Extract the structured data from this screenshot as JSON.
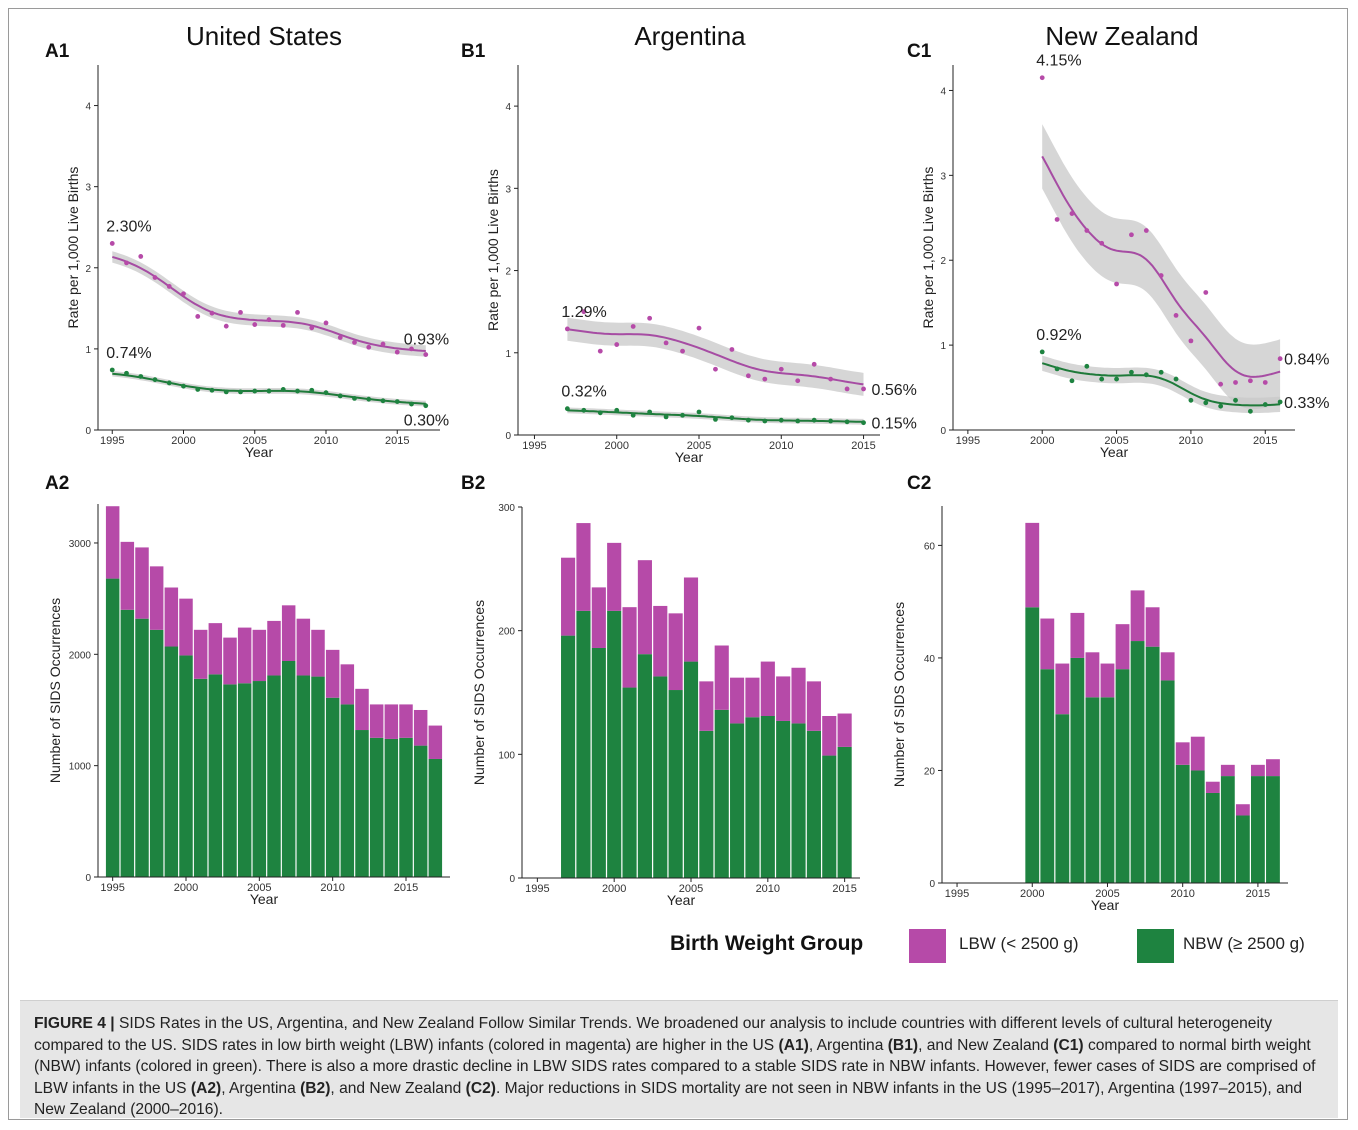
{
  "colors": {
    "lbw": "#b64aa8",
    "nbw": "#1e8340",
    "rate_lbw_line": "#a64ca3",
    "rate_nbw_line": "#1f7a3a",
    "band": "#c8c8c8"
  },
  "panels": [
    {
      "id": "A",
      "title": "United States",
      "label1": "A1",
      "label2": "A2"
    },
    {
      "id": "B",
      "title": "Argentina",
      "label1": "B1",
      "label2": "B2"
    },
    {
      "id": "C",
      "title": "New Zealand",
      "label1": "C1",
      "label2": "C2"
    }
  ],
  "chart_data": [
    {
      "panel": "A1",
      "type": "line",
      "title": "United States",
      "xlabel": "Year",
      "ylabel": "Rate per 1,000 Live Births",
      "xlim": [
        1994,
        2018
      ],
      "ylim": [
        0,
        4.5
      ],
      "xticks": [
        1995,
        2000,
        2005,
        2010,
        2015
      ],
      "yticks": [
        0,
        1,
        2,
        3,
        4
      ],
      "series": [
        {
          "group": "LBW",
          "x": [
            1995,
            1996,
            1997,
            1998,
            1999,
            2000,
            2001,
            2002,
            2003,
            2004,
            2005,
            2006,
            2007,
            2008,
            2009,
            2010,
            2011,
            2012,
            2013,
            2014,
            2015,
            2016,
            2017
          ],
          "y": [
            2.3,
            2.06,
            2.14,
            1.88,
            1.77,
            1.68,
            1.4,
            1.44,
            1.28,
            1.45,
            1.3,
            1.36,
            1.29,
            1.45,
            1.26,
            1.32,
            1.14,
            1.08,
            1.02,
            1.06,
            0.96,
            1.0,
            0.93
          ]
        },
        {
          "group": "NBW",
          "x": [
            1995,
            1996,
            1997,
            1998,
            1999,
            2000,
            2001,
            2002,
            2003,
            2004,
            2005,
            2006,
            2007,
            2008,
            2009,
            2010,
            2011,
            2012,
            2013,
            2014,
            2015,
            2016,
            2017
          ],
          "y": [
            0.74,
            0.7,
            0.66,
            0.62,
            0.58,
            0.54,
            0.5,
            0.49,
            0.47,
            0.47,
            0.48,
            0.48,
            0.5,
            0.48,
            0.49,
            0.46,
            0.42,
            0.39,
            0.38,
            0.36,
            0.35,
            0.32,
            0.3
          ]
        }
      ],
      "annotations": [
        {
          "text": "2.30%",
          "x": 1995,
          "y": 2.3
        },
        {
          "text": "0.93%",
          "x": 2017,
          "y": 0.93
        },
        {
          "text": "0.74%",
          "x": 1995,
          "y": 0.74
        },
        {
          "text": "0.30%",
          "x": 2017,
          "y": 0.3
        }
      ]
    },
    {
      "panel": "B1",
      "type": "line",
      "title": "Argentina",
      "xlabel": "Year",
      "ylabel": "Rate per 1,000 Live Births",
      "xlim": [
        1994,
        2016
      ],
      "ylim": [
        0,
        4.5
      ],
      "xticks": [
        1995,
        2000,
        2005,
        2010,
        2015
      ],
      "yticks": [
        0,
        1,
        2,
        3,
        4
      ],
      "series": [
        {
          "group": "LBW",
          "x": [
            1997,
            1998,
            1999,
            2000,
            2001,
            2002,
            2003,
            2004,
            2005,
            2006,
            2007,
            2008,
            2009,
            2010,
            2011,
            2012,
            2013,
            2014,
            2015
          ],
          "y": [
            1.29,
            1.5,
            1.02,
            1.1,
            1.32,
            1.42,
            1.12,
            1.02,
            1.3,
            0.8,
            1.04,
            0.72,
            0.68,
            0.8,
            0.66,
            0.86,
            0.68,
            0.56,
            0.56
          ]
        },
        {
          "group": "NBW",
          "x": [
            1997,
            1998,
            1999,
            2000,
            2001,
            2002,
            2003,
            2004,
            2005,
            2006,
            2007,
            2008,
            2009,
            2010,
            2011,
            2012,
            2013,
            2014,
            2015
          ],
          "y": [
            0.32,
            0.3,
            0.27,
            0.3,
            0.24,
            0.28,
            0.22,
            0.24,
            0.28,
            0.19,
            0.21,
            0.18,
            0.17,
            0.18,
            0.17,
            0.18,
            0.17,
            0.16,
            0.15
          ]
        }
      ],
      "annotations": [
        {
          "text": "1.29%",
          "x": 1997,
          "y": 1.29
        },
        {
          "text": "0.56%",
          "x": 2015,
          "y": 0.56
        },
        {
          "text": "0.32%",
          "x": 1997,
          "y": 0.32
        },
        {
          "text": "0.15%",
          "x": 2015,
          "y": 0.15
        }
      ]
    },
    {
      "panel": "C1",
      "type": "line",
      "title": "New Zealand",
      "xlabel": "Year",
      "ylabel": "Rate per 1,000 Live Births",
      "xlim": [
        1994,
        2017
      ],
      "ylim": [
        0,
        4.3
      ],
      "xticks": [
        1995,
        2000,
        2005,
        2010,
        2015
      ],
      "yticks": [
        0,
        1,
        2,
        3,
        4
      ],
      "series": [
        {
          "group": "LBW",
          "x": [
            2000,
            2001,
            2002,
            2003,
            2004,
            2005,
            2006,
            2007,
            2008,
            2009,
            2010,
            2011,
            2012,
            2013,
            2014,
            2015,
            2016
          ],
          "y": [
            4.15,
            2.48,
            2.55,
            2.35,
            2.2,
            1.72,
            2.3,
            2.35,
            1.82,
            1.35,
            1.05,
            1.62,
            0.54,
            0.56,
            0.58,
            0.56,
            0.84
          ]
        },
        {
          "group": "NBW",
          "x": [
            2000,
            2001,
            2002,
            2003,
            2004,
            2005,
            2006,
            2007,
            2008,
            2009,
            2010,
            2011,
            2012,
            2013,
            2014,
            2015,
            2016
          ],
          "y": [
            0.92,
            0.72,
            0.58,
            0.75,
            0.6,
            0.6,
            0.68,
            0.65,
            0.68,
            0.6,
            0.35,
            0.32,
            0.28,
            0.35,
            0.22,
            0.3,
            0.33
          ]
        }
      ],
      "annotations": [
        {
          "text": "4.15%",
          "x": 2000,
          "y": 4.15
        },
        {
          "text": "0.84%",
          "x": 2016,
          "y": 0.84
        },
        {
          "text": "0.92%",
          "x": 2000,
          "y": 0.92
        },
        {
          "text": "0.33%",
          "x": 2016,
          "y": 0.33
        }
      ]
    },
    {
      "panel": "A2",
      "type": "bar",
      "xlabel": "Year",
      "ylabel": "Number of SIDS Occurrences",
      "xlim": [
        1994,
        2018
      ],
      "ylim": [
        0,
        3350
      ],
      "xticks": [
        1995,
        2000,
        2005,
        2010,
        2015
      ],
      "yticks": [
        0,
        1000,
        2000,
        3000
      ],
      "categories": [
        1995,
        1996,
        1997,
        1998,
        1999,
        2000,
        2001,
        2002,
        2003,
        2004,
        2005,
        2006,
        2007,
        2008,
        2009,
        2010,
        2011,
        2012,
        2013,
        2014,
        2015,
        2016,
        2017
      ],
      "series": [
        {
          "group": "NBW",
          "values": [
            2680,
            2400,
            2320,
            2220,
            2070,
            1990,
            1780,
            1820,
            1730,
            1740,
            1760,
            1810,
            1940,
            1810,
            1800,
            1610,
            1550,
            1320,
            1250,
            1240,
            1250,
            1180,
            1060
          ]
        },
        {
          "group": "LBW",
          "values": [
            650,
            610,
            640,
            570,
            530,
            510,
            440,
            460,
            420,
            500,
            460,
            490,
            500,
            510,
            420,
            430,
            360,
            370,
            300,
            310,
            300,
            320,
            300
          ]
        }
      ]
    },
    {
      "panel": "B2",
      "type": "bar",
      "xlabel": "Year",
      "ylabel": "Number of SIDS Occurrences",
      "xlim": [
        1994,
        2016
      ],
      "ylim": [
        0,
        300
      ],
      "xticks": [
        1995,
        2000,
        2005,
        2010,
        2015
      ],
      "yticks": [
        0,
        100,
        200,
        300
      ],
      "categories": [
        1997,
        1998,
        1999,
        2000,
        2001,
        2002,
        2003,
        2004,
        2005,
        2006,
        2007,
        2008,
        2009,
        2010,
        2011,
        2012,
        2013,
        2014,
        2015
      ],
      "series": [
        {
          "group": "NBW",
          "values": [
            196,
            216,
            186,
            216,
            154,
            181,
            163,
            152,
            175,
            119,
            136,
            125,
            130,
            131,
            127,
            125,
            119,
            99,
            106
          ]
        },
        {
          "group": "LBW",
          "values": [
            63,
            71,
            49,
            55,
            65,
            76,
            57,
            62,
            68,
            40,
            52,
            37,
            32,
            44,
            36,
            45,
            40,
            32,
            27
          ]
        }
      ]
    },
    {
      "panel": "C2",
      "type": "bar",
      "xlabel": "Year",
      "ylabel": "Number of SIDS Occurrences",
      "xlim": [
        1994,
        2017
      ],
      "ylim": [
        0,
        67
      ],
      "xticks": [
        1995,
        2000,
        2005,
        2010,
        2015
      ],
      "yticks": [
        0,
        20,
        40,
        60
      ],
      "categories": [
        2000,
        2001,
        2002,
        2003,
        2004,
        2005,
        2006,
        2007,
        2008,
        2009,
        2010,
        2011,
        2012,
        2013,
        2014,
        2015,
        2016
      ],
      "series": [
        {
          "group": "NBW",
          "values": [
            49,
            38,
            30,
            40,
            33,
            33,
            38,
            43,
            42,
            36,
            21,
            20,
            16,
            19,
            12,
            19,
            19
          ]
        },
        {
          "group": "LBW",
          "values": [
            15,
            9,
            9,
            8,
            8,
            6,
            8,
            9,
            7,
            5,
            4,
            6,
            2,
            2,
            2,
            2,
            3
          ]
        }
      ]
    }
  ],
  "legend": {
    "title": "Birth Weight Group",
    "items": [
      {
        "label": "LBW (< 2500 g)",
        "color": "#b64aa8"
      },
      {
        "label": "NBW (≥ 2500 g)",
        "color": "#1e8340"
      }
    ]
  },
  "caption": {
    "label": "FIGURE 4 |",
    "segments": [
      {
        "t": " SIDS Rates in the US, Argentina, and New Zealand Follow Similar Trends. We broadened our analysis to include countries with different levels of cultural heterogeneity compared to the US. SIDS rates in low birth weight (LBW) infants (colored in magenta) are higher in the US ",
        "b": false
      },
      {
        "t": "(A1)",
        "b": true
      },
      {
        "t": ", Argentina ",
        "b": false
      },
      {
        "t": "(B1)",
        "b": true
      },
      {
        "t": ", and New Zealand ",
        "b": false
      },
      {
        "t": "(C1)",
        "b": true
      },
      {
        "t": " compared to normal birth weight (NBW) infants (colored in green). There is also a more drastic decline in LBW SIDS rates compared to a stable SIDS rate in NBW infants. However, fewer cases of SIDS are comprised of LBW infants in the US ",
        "b": false
      },
      {
        "t": "(A2)",
        "b": true
      },
      {
        "t": ", Argentina ",
        "b": false
      },
      {
        "t": "(B2)",
        "b": true
      },
      {
        "t": ", and New Zealand ",
        "b": false
      },
      {
        "t": "(C2)",
        "b": true
      },
      {
        "t": ". Major reductions in SIDS mortality are not seen in NBW infants in the US (1995–2017), Argentina (1997–2015), and New Zealand (2000–2016).",
        "b": false
      }
    ]
  }
}
